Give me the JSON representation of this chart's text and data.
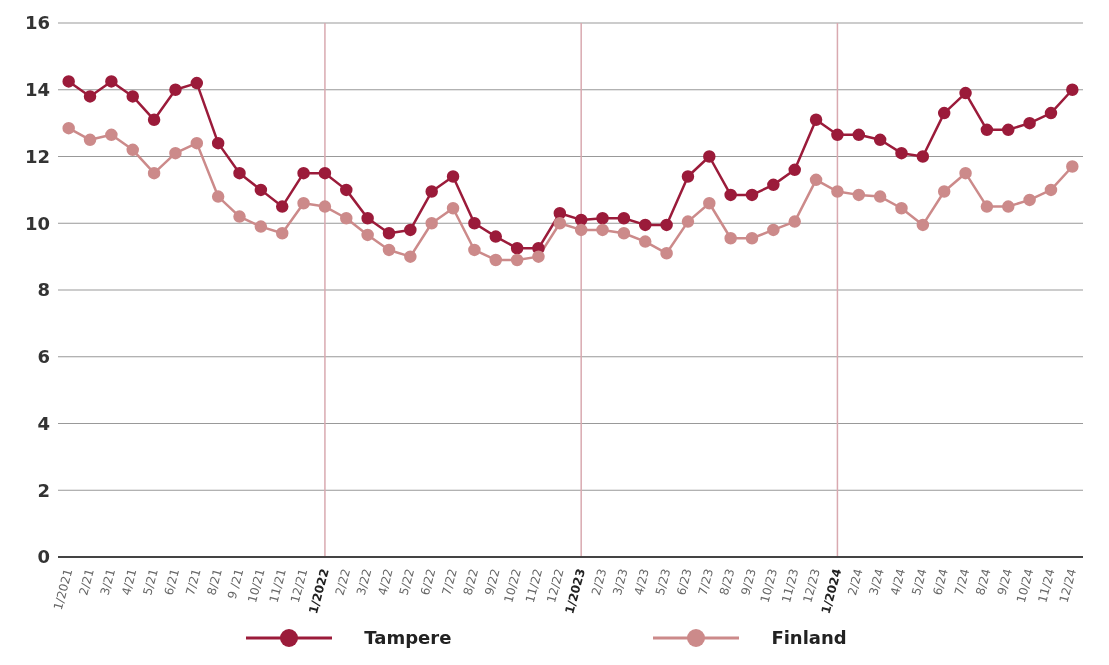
{
  "chart_data": {
    "type": "line",
    "categories": [
      "1/2021",
      "2/21",
      "3/21",
      "4/21",
      "5/21",
      "6/21",
      "7/21",
      "8/21",
      "9 /21",
      "10/21",
      "11/21",
      "12/21",
      "1/2022",
      "2/22",
      "3/22",
      "4/22",
      "5/22",
      "6/22",
      "7/22",
      "8/22",
      "9/22",
      "10/22",
      "11/22",
      "12/22",
      "1/2023",
      "2/23",
      "3/23",
      "4/23",
      "5/23",
      "6/23",
      "7/23",
      "8/23",
      "9/23",
      "10/23",
      "11/23",
      "12/23",
      "1/2024",
      "2/24",
      "3/24",
      "4/24",
      "5/24",
      "6/24",
      "7/24",
      "8/24",
      "9/24",
      "10/24",
      "11/24",
      "12/24"
    ],
    "series": [
      {
        "name": "Tampere",
        "color": "#9b1b3a",
        "values": [
          14.25,
          13.8,
          14.25,
          13.8,
          13.1,
          14.0,
          14.2,
          12.4,
          11.5,
          11.0,
          10.5,
          11.5,
          11.5,
          11.0,
          10.15,
          9.7,
          9.8,
          10.95,
          11.4,
          10.0,
          9.6,
          9.25,
          9.25,
          10.3,
          10.1,
          10.15,
          10.15,
          9.95,
          9.95,
          11.4,
          12.0,
          10.85,
          10.85,
          11.15,
          11.6,
          13.1,
          12.65,
          12.65,
          12.5,
          12.1,
          12.0,
          13.3,
          13.9,
          12.8,
          12.8,
          13.0,
          13.3,
          14.0
        ]
      },
      {
        "name": "Finland",
        "color": "#cc8a8a",
        "values": [
          12.85,
          12.5,
          12.65,
          12.2,
          11.5,
          12.1,
          12.4,
          10.8,
          10.2,
          9.9,
          9.7,
          10.6,
          10.5,
          10.15,
          9.65,
          9.2,
          9.0,
          10.0,
          10.45,
          9.2,
          8.9,
          8.9,
          9.0,
          10.0,
          9.8,
          9.8,
          9.7,
          9.45,
          9.1,
          10.05,
          10.6,
          9.55,
          9.55,
          9.8,
          10.05,
          11.3,
          10.95,
          10.85,
          10.8,
          10.45,
          9.95,
          10.95,
          11.5,
          10.5,
          10.5,
          10.7,
          11.0,
          11.7
        ]
      }
    ],
    "ylim": [
      0,
      16
    ],
    "yticks": [
      0,
      2,
      4,
      6,
      8,
      10,
      12,
      14,
      16
    ],
    "grid": "y",
    "legend": "bottom",
    "marker": "circle",
    "line_style": "solid",
    "ref_lines": [
      {
        "axis": "x",
        "value": "1/2022",
        "color": "#d9a9b0"
      },
      {
        "axis": "x",
        "value": "1/2023",
        "color": "#d9a9b0"
      },
      {
        "axis": "x",
        "value": "1/2024",
        "color": "#d9a9b0"
      }
    ]
  }
}
